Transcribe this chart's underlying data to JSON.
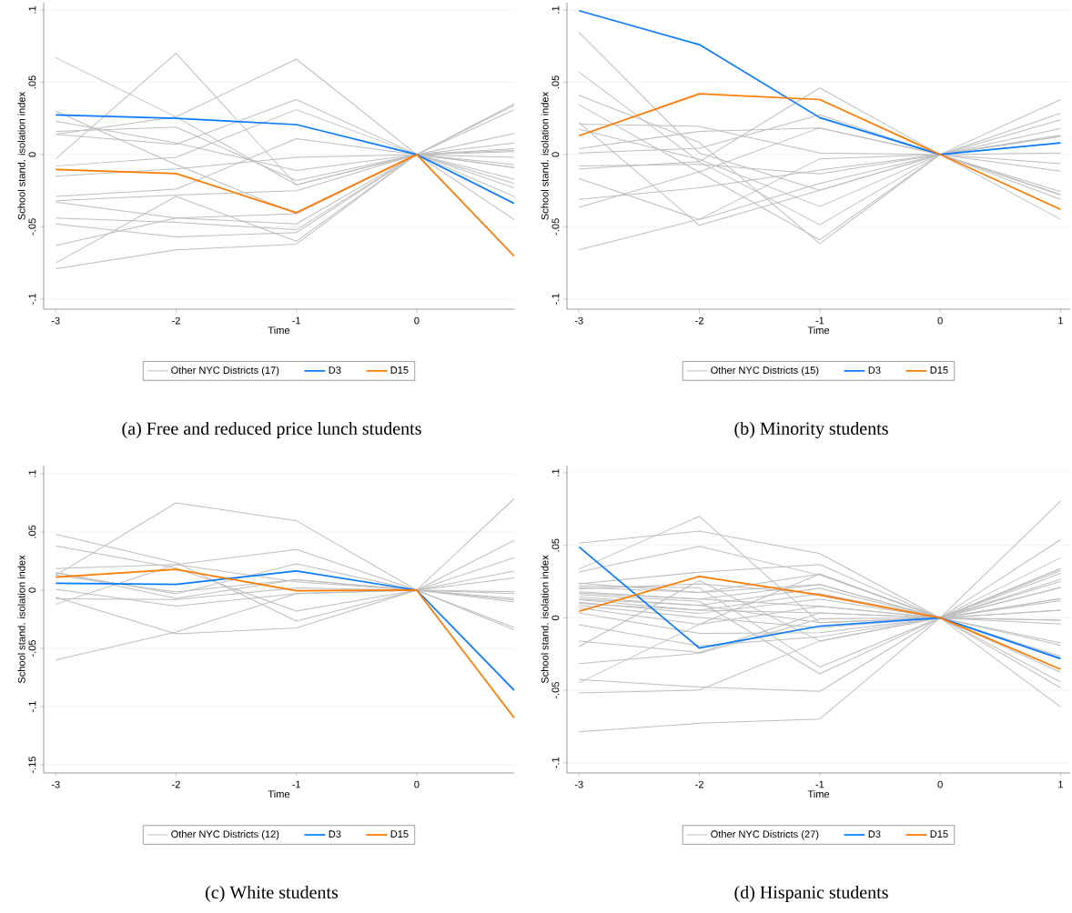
{
  "chart_data": [
    {
      "type": "line",
      "xlabel": "Time",
      "ylabel": "School stand. isolation index",
      "x": [
        -3,
        -2,
        -1,
        0,
        0.81
      ],
      "xlim": [
        -3.1,
        0.81
      ],
      "xticks": [
        -3,
        -2,
        -1,
        0
      ],
      "ylim": [
        -0.107,
        0.105
      ],
      "yticks": [
        {
          "value": -0.1,
          "label": "-.1"
        },
        {
          "value": -0.05,
          "label": "-.05"
        },
        0,
        {
          "value": 0.05,
          "label": ".05"
        },
        {
          "value": 0.1,
          "label": ".1"
        }
      ],
      "grid": "y",
      "legend": "bottom",
      "annotations": [
        "(a) Free and reduced price lunch students"
      ],
      "series": [
        {
          "name": "Other NYC Districts (17)",
          "color": "#bebebe",
          "values": [
            0.067,
            0.026,
            0.066,
            0,
            0.035
          ]
        },
        {
          "color": "#bebebe",
          "values": [
            -0.003,
            0.07,
            -0.021,
            0,
            0.034
          ]
        },
        {
          "color": "#bebebe",
          "values": [
            0.03,
            -0.007,
            -0.041,
            0,
            -0.029
          ]
        },
        {
          "color": "#bebebe",
          "values": [
            0.023,
            0.008,
            -0.011,
            0,
            0.0145
          ]
        },
        {
          "color": "#bebebe",
          "values": [
            0.016,
            0.019,
            -0.018,
            0,
            -0.007
          ]
        },
        {
          "color": "#bebebe",
          "values": [
            0.014,
            0.007,
            0.038,
            0,
            0.008
          ]
        },
        {
          "color": "#bebebe",
          "values": [
            -0.008,
            -0.002,
            0.031,
            0,
            0.031
          ]
        },
        {
          "color": "#bebebe",
          "values": [
            -0.015,
            -0.01,
            -0.002,
            0,
            0.003
          ]
        },
        {
          "color": "#bebebe",
          "values": [
            -0.029,
            -0.024,
            0.011,
            0,
            0.004
          ]
        },
        {
          "color": "#bebebe",
          "values": [
            -0.032,
            -0.028,
            -0.025,
            0,
            -0.017
          ]
        },
        {
          "color": "#bebebe",
          "values": [
            -0.033,
            -0.044,
            -0.048,
            0,
            -0.009
          ]
        },
        {
          "color": "#bebebe",
          "values": [
            -0.044,
            -0.047,
            -0.052,
            0,
            -0.02
          ]
        },
        {
          "color": "#bebebe",
          "values": [
            -0.048,
            -0.057,
            -0.054,
            0,
            -0.023
          ]
        },
        {
          "color": "#bebebe",
          "values": [
            -0.063,
            -0.044,
            -0.041,
            0,
            0.002
          ]
        },
        {
          "color": "#bebebe",
          "values": [
            -0.075,
            -0.029,
            -0.06,
            0,
            -0.045
          ]
        },
        {
          "color": "#bebebe",
          "values": [
            -0.079,
            -0.066,
            -0.062,
            0,
            -0.002
          ]
        },
        {
          "color": "#bebebe",
          "values": [
            0.014,
            0.026,
            -0.021,
            0,
            -0.009
          ]
        },
        {
          "name": "D3",
          "color": "#0a7bff",
          "values": [
            0.0274,
            0.025,
            0.0207,
            0,
            -0.0338
          ]
        },
        {
          "name": "D15",
          "color": "#ff7a00",
          "values": [
            -0.0103,
            -0.0132,
            -0.0402,
            0,
            -0.0703
          ]
        }
      ]
    },
    {
      "type": "line",
      "xlabel": "Time",
      "ylabel": "School stand. isolation index",
      "x": [
        -3,
        -2,
        -1,
        0,
        1
      ],
      "xlim": [
        -3.1,
        1.08
      ],
      "xticks": [
        -3,
        -2,
        -1,
        0,
        1
      ],
      "ylim": [
        -0.107,
        0.105
      ],
      "yticks": [
        {
          "value": -0.1,
          "label": "-.1"
        },
        {
          "value": -0.05,
          "label": "-.05"
        },
        0,
        {
          "value": 0.05,
          "label": ".05"
        },
        {
          "value": 0.1,
          "label": ".1"
        }
      ],
      "grid": "y",
      "legend": "bottom",
      "annotations": [
        "(b) Minority students"
      ],
      "series": [
        {
          "name": "Other NYC Districts (15)",
          "color": "#bebebe",
          "values": [
            0.0845,
            0.001,
            -0.0248,
            0,
            0.0125
          ]
        },
        {
          "color": "#bebebe",
          "values": [
            0.057,
            -0.005,
            -0.0486,
            0,
            -0.0257
          ]
        },
        {
          "color": "#bebebe",
          "values": [
            0.041,
            0.0084,
            -0.0616,
            0,
            -0.031
          ]
        },
        {
          "color": "#bebebe",
          "values": [
            0.0345,
            -0.0123,
            -0.059,
            0,
            -0.0275
          ]
        },
        {
          "color": "#bebebe",
          "values": [
            0.021,
            0.0195,
            0.001,
            0,
            0.001
          ]
        },
        {
          "color": "#bebebe",
          "values": [
            0.0175,
            -0.0034,
            -0.036,
            0,
            -0.0448
          ]
        },
        {
          "color": "#bebebe",
          "values": [
            0.004,
            0.016,
            0.0184,
            0,
            0.018
          ]
        },
        {
          "color": "#bebebe",
          "values": [
            0.001,
            0.0043,
            0.0275,
            0,
            0.024
          ]
        },
        {
          "color": "#bebebe",
          "values": [
            -0.008,
            -0.0068,
            -0.0134,
            0,
            -0.0064
          ]
        },
        {
          "color": "#bebebe",
          "values": [
            -0.01,
            -0.005,
            0.046,
            0,
            0.038
          ]
        },
        {
          "color": "#bebebe",
          "values": [
            -0.0166,
            -0.045,
            -0.02,
            0,
            0.0286
          ]
        },
        {
          "color": "#bebebe",
          "values": [
            -0.031,
            -0.023,
            -0.0107,
            0,
            -0.0116
          ]
        },
        {
          "color": "#bebebe",
          "values": [
            -0.0366,
            -0.012,
            0.0184,
            0,
            0.0134
          ]
        },
        {
          "color": "#bebebe",
          "values": [
            -0.066,
            -0.0448,
            -0.003,
            0,
            -0.028
          ]
        },
        {
          "color": "#bebebe",
          "values": [
            0.022,
            -0.049,
            -0.0248,
            0,
            0.0125
          ]
        },
        {
          "name": "D3",
          "color": "#0a7bff",
          "values": [
            0.0995,
            0.076,
            0.0255,
            0,
            0.008
          ]
        },
        {
          "name": "D15",
          "color": "#ff7a00",
          "values": [
            0.013,
            0.042,
            0.038,
            0,
            -0.038
          ]
        }
      ]
    },
    {
      "type": "line",
      "xlabel": "Time",
      "ylabel": "School stand. isolation index",
      "x": [
        -3,
        -2,
        -1,
        0,
        0.81
      ],
      "xlim": [
        -3.1,
        0.81
      ],
      "xticks": [
        -3,
        -2,
        -1,
        0
      ],
      "ylim": [
        -0.157,
        0.107
      ],
      "yticks": [
        {
          "value": -0.15,
          "label": "-.15"
        },
        {
          "value": -0.1,
          "label": "-.1"
        },
        {
          "value": -0.05,
          "label": "-.05"
        },
        0,
        {
          "value": 0.05,
          "label": ".05"
        },
        {
          "value": 0.1,
          "label": ".1"
        }
      ],
      "grid": "y",
      "legend": "bottom",
      "annotations": [
        "(c) White students"
      ],
      "series": [
        {
          "name": "Other NYC Districts (12)",
          "color": "#bebebe",
          "values": [
            0.0128,
            0.075,
            0.0596,
            0,
            0.0785
          ]
        },
        {
          "color": "#bebebe",
          "values": [
            0.048,
            0.0237,
            -0.0266,
            0,
            -0.032
          ]
        },
        {
          "color": "#bebebe",
          "values": [
            0.038,
            0.019,
            -0.018,
            0,
            -0.034
          ]
        },
        {
          "color": "#bebebe",
          "values": [
            0.0186,
            0.022,
            0.0349,
            0,
            0.0428
          ]
        },
        {
          "color": "#bebebe",
          "values": [
            0.015,
            -0.0032,
            0.0226,
            0,
            0.028
          ]
        },
        {
          "color": "#bebebe",
          "values": [
            0.0128,
            -0.0016,
            0.009,
            0,
            0.0165
          ]
        },
        {
          "color": "#bebebe",
          "values": [
            0.0008,
            -0.0136,
            -0.003,
            0,
            -0.0013
          ]
        },
        {
          "color": "#bebebe",
          "values": [
            -0.006,
            -0.0375,
            -0.0324,
            0,
            -0.003
          ]
        },
        {
          "color": "#bebebe",
          "values": [
            -0.0075,
            -0.008,
            0.002,
            0,
            -0.0085
          ]
        },
        {
          "color": "#bebebe",
          "values": [
            -0.012,
            0.022,
            0.0072,
            0,
            -0.007
          ]
        },
        {
          "color": "#bebebe",
          "values": [
            -0.06,
            -0.036,
            -0.003,
            0,
            0.0106
          ]
        },
        {
          "color": "#bebebe",
          "values": [
            0.015,
            -0.007,
            0.009,
            0,
            -0.01
          ]
        },
        {
          "name": "D3",
          "color": "#0a7bff",
          "values": [
            0.0059,
            0.005,
            0.0165,
            0,
            -0.086
          ]
        },
        {
          "name": "D15",
          "color": "#ff7a00",
          "values": [
            0.0112,
            0.0178,
            -0.0005,
            0,
            -0.1097
          ]
        }
      ]
    },
    {
      "type": "line",
      "xlabel": "Time",
      "ylabel": "School stand. isolation index",
      "x": [
        -3,
        -2,
        -1,
        0,
        1
      ],
      "xlim": [
        -3.1,
        1.08
      ],
      "xticks": [
        -3,
        -2,
        -1,
        0,
        1
      ],
      "ylim": [
        -0.107,
        0.105
      ],
      "yticks": [
        {
          "value": -0.1,
          "label": "-.1"
        },
        {
          "value": -0.05,
          "label": "-.05"
        },
        0,
        {
          "value": 0.05,
          "label": ".05"
        },
        {
          "value": 0.1,
          "label": ".1"
        }
      ],
      "grid": "y",
      "legend": "bottom",
      "annotations": [
        "(d) Hispanic students"
      ],
      "series": [
        {
          "name": "Other NYC Districts (27)",
          "color": "#bebebe",
          "values": [
            0.0516,
            0.0598,
            0.0443,
            0,
            0.0539
          ]
        },
        {
          "color": "#bebebe",
          "values": [
            0.0336,
            0.07,
            -0.0034,
            0,
            0.0805
          ]
        },
        {
          "color": "#bebebe",
          "values": [
            0.0316,
            0.0493,
            0.0295,
            0,
            0.0414
          ]
        },
        {
          "color": "#bebebe",
          "values": [
            0.0234,
            0.0315,
            0.0368,
            0,
            0.034
          ]
        },
        {
          "color": "#bebebe",
          "values": [
            0.022,
            0.0207,
            -0.0339,
            0,
            -0.0173
          ]
        },
        {
          "color": "#bebebe",
          "values": [
            0.021,
            0.0175,
            0.0302,
            0,
            0.0325
          ]
        },
        {
          "color": "#bebebe",
          "values": [
            0.018,
            0.013,
            0.023,
            0,
            0.0307
          ]
        },
        {
          "color": "#bebebe",
          "values": [
            0.016,
            0.0114,
            -0.0386,
            0,
            -0.0443
          ]
        },
        {
          "color": "#bebebe",
          "values": [
            0.0143,
            0.0086,
            0.0205,
            0,
            0.0266
          ]
        },
        {
          "color": "#bebebe",
          "values": [
            0.0125,
            0.0052,
            0.0166,
            0,
            0.025
          ]
        },
        {
          "color": "#bebebe",
          "values": [
            0.0107,
            0.003,
            0.013,
            0,
            0.021
          ]
        },
        {
          "color": "#bebebe",
          "values": [
            0.0086,
            0.0002,
            -0.0068,
            0,
            -0.0266
          ]
        },
        {
          "color": "#bebebe",
          "values": [
            0.0068,
            -0.0045,
            0.008,
            0,
            0.0132
          ]
        },
        {
          "color": "#bebebe",
          "values": [
            0.0034,
            -0.0107,
            -0.0102,
            0,
            -0.0189
          ]
        },
        {
          "color": "#bebebe",
          "values": [
            -0.0048,
            -0.0193,
            -0.013,
            0,
            -0.0277
          ]
        },
        {
          "color": "#bebebe",
          "values": [
            -0.016,
            -0.0239,
            0.0034,
            0,
            0.0118
          ]
        },
        {
          "color": "#bebebe",
          "values": [
            -0.0198,
            0.0257,
            -0.016,
            0,
            -0.0375
          ]
        },
        {
          "color": "#bebebe",
          "values": [
            -0.0316,
            -0.0245,
            -0.0007,
            0,
            0.0052
          ]
        },
        {
          "color": "#bebebe",
          "values": [
            -0.0425,
            -0.0477,
            -0.0507,
            0,
            -0.0614
          ]
        },
        {
          "color": "#bebebe",
          "values": [
            -0.0448,
            -0.0045,
            0.0302,
            0,
            -0.0016
          ]
        },
        {
          "color": "#bebebe",
          "values": [
            -0.0518,
            -0.0498,
            -0.016,
            0,
            -0.0482
          ]
        },
        {
          "color": "#bebebe",
          "values": [
            -0.0786,
            -0.0727,
            -0.0698,
            0,
            -0.0043
          ]
        },
        {
          "color": "#bebebe",
          "values": [
            0.02,
            0.0235,
            0.0166,
            0,
            0.034
          ]
        },
        {
          "color": "#bebebe",
          "values": [
            0.017,
            0.013,
            0.008,
            0,
            0.0132
          ]
        },
        {
          "color": "#bebebe",
          "values": [
            0.013,
            0.0086,
            -0.0034,
            0,
            -0.0016
          ]
        },
        {
          "color": "#bebebe",
          "values": [
            0.01,
            0.0052,
            0.0034,
            0,
            0.0052
          ]
        },
        {
          "color": "#bebebe",
          "values": [
            0.024,
            0.0175,
            0.023,
            0,
            0.021
          ]
        },
        {
          "name": "D3",
          "color": "#0a7bff",
          "values": [
            0.0489,
            -0.0209,
            -0.0057,
            0,
            -0.0282
          ]
        },
        {
          "name": "D15",
          "color": "#ff7a00",
          "values": [
            0.0045,
            0.0286,
            0.0157,
            0,
            -0.0355
          ]
        }
      ]
    }
  ]
}
